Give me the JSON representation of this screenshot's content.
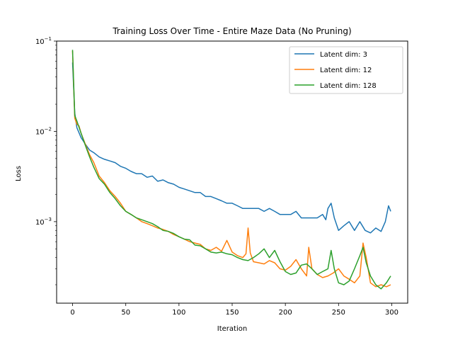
{
  "chart_data": {
    "type": "line",
    "title": "Training Loss Over Time - Entire Maze Data (No Pruning)",
    "xlabel": "Iteration",
    "ylabel": "Loss",
    "xlim": [
      -15,
      315
    ],
    "ylim": [
      0.000125,
      0.1
    ],
    "yscale": "log",
    "xticks": [
      0,
      50,
      100,
      150,
      200,
      250,
      300
    ],
    "yticks": [
      {
        "value": 0.1,
        "label": "10",
        "exp": "−1"
      },
      {
        "value": 0.01,
        "label": "10",
        "exp": "−2"
      },
      {
        "value": 0.001,
        "label": "10",
        "exp": "−3"
      }
    ],
    "grid": false,
    "legend_position": "top-right",
    "series": [
      {
        "name": "Latent dim: 3",
        "color": "#1f77b4",
        "points": [
          [
            0,
            0.058
          ],
          [
            2,
            0.016
          ],
          [
            4,
            0.011
          ],
          [
            8,
            0.0085
          ],
          [
            12,
            0.0072
          ],
          [
            16,
            0.0062
          ],
          [
            20,
            0.0058
          ],
          [
            25,
            0.0052
          ],
          [
            30,
            0.0049
          ],
          [
            35,
            0.0047
          ],
          [
            40,
            0.0045
          ],
          [
            45,
            0.0041
          ],
          [
            50,
            0.0039
          ],
          [
            55,
            0.0036
          ],
          [
            60,
            0.0034
          ],
          [
            65,
            0.0034
          ],
          [
            70,
            0.0031
          ],
          [
            75,
            0.0032
          ],
          [
            80,
            0.0028
          ],
          [
            85,
            0.0029
          ],
          [
            90,
            0.0027
          ],
          [
            95,
            0.0026
          ],
          [
            100,
            0.0024
          ],
          [
            105,
            0.0023
          ],
          [
            110,
            0.0022
          ],
          [
            115,
            0.0021
          ],
          [
            120,
            0.0021
          ],
          [
            125,
            0.0019
          ],
          [
            130,
            0.0019
          ],
          [
            135,
            0.0018
          ],
          [
            140,
            0.0017
          ],
          [
            145,
            0.0016
          ],
          [
            150,
            0.0016
          ],
          [
            155,
            0.0015
          ],
          [
            160,
            0.0014
          ],
          [
            165,
            0.0014
          ],
          [
            170,
            0.0014
          ],
          [
            175,
            0.0014
          ],
          [
            180,
            0.0013
          ],
          [
            185,
            0.0014
          ],
          [
            190,
            0.0013
          ],
          [
            195,
            0.0012
          ],
          [
            200,
            0.0012
          ],
          [
            205,
            0.0012
          ],
          [
            210,
            0.0013
          ],
          [
            215,
            0.0011
          ],
          [
            220,
            0.0011
          ],
          [
            225,
            0.0011
          ],
          [
            230,
            0.0011
          ],
          [
            235,
            0.0012
          ],
          [
            238,
            0.00105
          ],
          [
            240,
            0.0014
          ],
          [
            243,
            0.0016
          ],
          [
            246,
            0.0011
          ],
          [
            250,
            0.0008
          ],
          [
            255,
            0.0009
          ],
          [
            260,
            0.001
          ],
          [
            265,
            0.0008
          ],
          [
            270,
            0.001
          ],
          [
            275,
            0.0008
          ],
          [
            280,
            0.00075
          ],
          [
            285,
            0.00085
          ],
          [
            290,
            0.00078
          ],
          [
            294,
            0.001
          ],
          [
            297,
            0.0015
          ],
          [
            299,
            0.0013
          ]
        ]
      },
      {
        "name": "Latent dim: 12",
        "color": "#ff7f0e",
        "points": [
          [
            0,
            0.078
          ],
          [
            2,
            0.014
          ],
          [
            4,
            0.012
          ],
          [
            6,
            0.0115
          ],
          [
            8,
            0.0095
          ],
          [
            12,
            0.0072
          ],
          [
            16,
            0.0055
          ],
          [
            20,
            0.0045
          ],
          [
            25,
            0.0032
          ],
          [
            30,
            0.0027
          ],
          [
            35,
            0.0022
          ],
          [
            40,
            0.0019
          ],
          [
            45,
            0.0016
          ],
          [
            50,
            0.0013
          ],
          [
            55,
            0.0012
          ],
          [
            60,
            0.0011
          ],
          [
            65,
            0.001
          ],
          [
            70,
            0.00095
          ],
          [
            75,
            0.0009
          ],
          [
            80,
            0.00085
          ],
          [
            85,
            0.00082
          ],
          [
            90,
            0.00078
          ],
          [
            95,
            0.00072
          ],
          [
            100,
            0.00068
          ],
          [
            105,
            0.00064
          ],
          [
            110,
            0.0006
          ],
          [
            115,
            0.00058
          ],
          [
            120,
            0.00056
          ],
          [
            125,
            0.0005
          ],
          [
            130,
            0.00048
          ],
          [
            135,
            0.00052
          ],
          [
            140,
            0.00047
          ],
          [
            145,
            0.00062
          ],
          [
            150,
            0.00046
          ],
          [
            155,
            0.00042
          ],
          [
            160,
            0.0004
          ],
          [
            163,
            0.00044
          ],
          [
            165,
            0.00085
          ],
          [
            167,
            0.00045
          ],
          [
            170,
            0.00036
          ],
          [
            175,
            0.00035
          ],
          [
            180,
            0.00034
          ],
          [
            185,
            0.00037
          ],
          [
            190,
            0.00035
          ],
          [
            195,
            0.0003
          ],
          [
            200,
            0.00029
          ],
          [
            205,
            0.00032
          ],
          [
            210,
            0.00038
          ],
          [
            215,
            0.0003
          ],
          [
            220,
            0.00025
          ],
          [
            222,
            0.00052
          ],
          [
            225,
            0.0003
          ],
          [
            230,
            0.00026
          ],
          [
            235,
            0.00024
          ],
          [
            240,
            0.00025
          ],
          [
            245,
            0.00027
          ],
          [
            250,
            0.0003
          ],
          [
            255,
            0.00025
          ],
          [
            260,
            0.00023
          ],
          [
            265,
            0.00021
          ],
          [
            270,
            0.00025
          ],
          [
            273,
            0.00058
          ],
          [
            276,
            0.0004
          ],
          [
            280,
            0.00021
          ],
          [
            285,
            0.00019
          ],
          [
            290,
            0.0002
          ],
          [
            295,
            0.00019
          ],
          [
            299,
            0.0002
          ]
        ]
      },
      {
        "name": "Latent dim: 128",
        "color": "#2ca02c",
        "points": [
          [
            0,
            0.08
          ],
          [
            2,
            0.015
          ],
          [
            4,
            0.013
          ],
          [
            8,
            0.0095
          ],
          [
            12,
            0.007
          ],
          [
            16,
            0.0052
          ],
          [
            20,
            0.004
          ],
          [
            25,
            0.003
          ],
          [
            30,
            0.0026
          ],
          [
            35,
            0.0021
          ],
          [
            40,
            0.0018
          ],
          [
            45,
            0.0015
          ],
          [
            50,
            0.0013
          ],
          [
            55,
            0.0012
          ],
          [
            60,
            0.0011
          ],
          [
            65,
            0.00105
          ],
          [
            70,
            0.001
          ],
          [
            75,
            0.00095
          ],
          [
            80,
            0.00088
          ],
          [
            85,
            0.0008
          ],
          [
            90,
            0.00078
          ],
          [
            95,
            0.00074
          ],
          [
            100,
            0.00068
          ],
          [
            105,
            0.00064
          ],
          [
            110,
            0.00063
          ],
          [
            115,
            0.00055
          ],
          [
            120,
            0.00054
          ],
          [
            125,
            0.0005
          ],
          [
            130,
            0.00046
          ],
          [
            135,
            0.00045
          ],
          [
            140,
            0.00046
          ],
          [
            145,
            0.00044
          ],
          [
            150,
            0.00043
          ],
          [
            155,
            0.0004
          ],
          [
            160,
            0.00038
          ],
          [
            165,
            0.00037
          ],
          [
            170,
            0.0004
          ],
          [
            175,
            0.00044
          ],
          [
            180,
            0.0005
          ],
          [
            185,
            0.0004
          ],
          [
            190,
            0.00048
          ],
          [
            195,
            0.00036
          ],
          [
            200,
            0.00028
          ],
          [
            205,
            0.00026
          ],
          [
            210,
            0.00027
          ],
          [
            215,
            0.00033
          ],
          [
            220,
            0.00034
          ],
          [
            225,
            0.0003
          ],
          [
            230,
            0.00026
          ],
          [
            235,
            0.00028
          ],
          [
            240,
            0.0003
          ],
          [
            243,
            0.00048
          ],
          [
            246,
            0.0003
          ],
          [
            250,
            0.00021
          ],
          [
            255,
            0.0002
          ],
          [
            260,
            0.00022
          ],
          [
            265,
            0.0003
          ],
          [
            270,
            0.00042
          ],
          [
            273,
            0.00052
          ],
          [
            276,
            0.00035
          ],
          [
            280,
            0.00025
          ],
          [
            285,
            0.0002
          ],
          [
            290,
            0.00018
          ],
          [
            295,
            0.00021
          ],
          [
            299,
            0.00025
          ]
        ]
      }
    ]
  }
}
